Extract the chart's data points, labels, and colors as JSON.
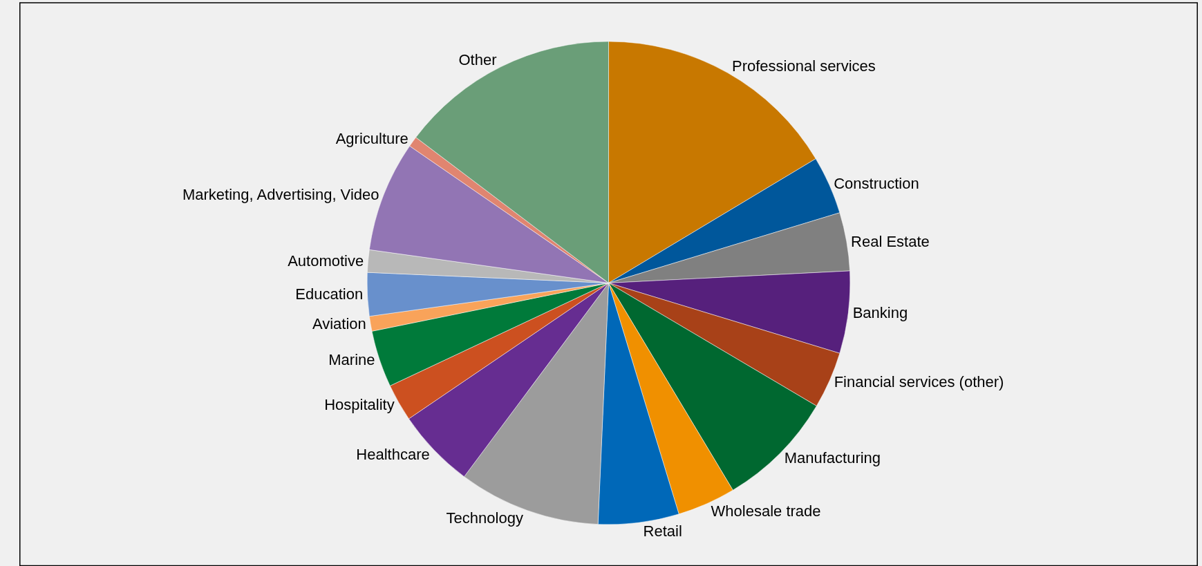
{
  "chart_data": {
    "type": "pie",
    "categories": [
      "Professional services",
      "Construction",
      "Real Estate",
      "Banking",
      "Financial services (other)",
      "Manufacturing",
      "Wholesale trade",
      "Retail",
      "Technology",
      "Healthcare",
      "Hospitality",
      "Marine",
      "Aviation",
      "Education",
      "Automotive",
      "Marketing, Advertising, Video",
      "Agriculture",
      "Other"
    ],
    "values": [
      16.4,
      3.9,
      3.9,
      5.5,
      3.8,
      7.9,
      3.9,
      5.4,
      9.5,
      5.3,
      2.5,
      3.8,
      1.0,
      2.9,
      1.5,
      7.4,
      0.7,
      14.7
    ],
    "colors": [
      "#c87800",
      "#00579b",
      "#808080",
      "#56207c",
      "#a84118",
      "#006830",
      "#f09000",
      "#0068b8",
      "#9c9c9c",
      "#662d91",
      "#cc5020",
      "#007a3a",
      "#f9a35a",
      "#6890cc",
      "#b8b8b8",
      "#9275b4",
      "#e08570",
      "#6a9e78"
    ],
    "legend": false
  }
}
